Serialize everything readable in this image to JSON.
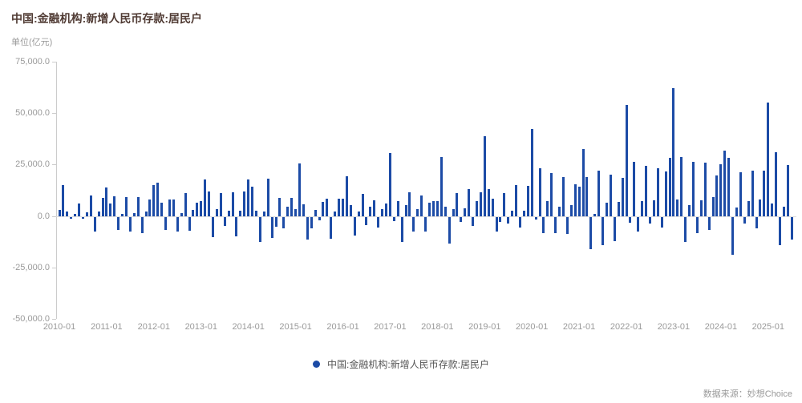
{
  "header": {
    "title": "中国:金融机构:新增人民币存款:居民户",
    "unit_label": "单位(亿元)"
  },
  "legend": {
    "label": "中国:金融机构:新增人民币存款:居民户"
  },
  "footer": {
    "source": "数据来源：妙想Choice"
  },
  "colors": {
    "bar": "#1c4ba6",
    "title": "#513c35",
    "axis_line": "#cccccc",
    "zero_line": "#dddddd",
    "tick_text": "#9a9a9a",
    "legend_text": "#555555"
  },
  "chart_data": {
    "type": "bar",
    "title": "中国:金融机构:新增人民币存款:居民户",
    "unit": "亿元",
    "frequency": "monthly",
    "start_month": "2010-01",
    "end_month": "2025-07",
    "values": [
      2900,
      15000,
      2300,
      -800,
      1100,
      6200,
      -1000,
      1800,
      9800,
      -7200,
      2000,
      8900,
      13700,
      5900,
      9400,
      -6300,
      1000,
      9100,
      -7200,
      1500,
      9100,
      -7800,
      2000,
      8100,
      15000,
      16300,
      6500,
      -6500,
      8100,
      8100,
      -7200,
      1500,
      11100,
      -6800,
      2900,
      6500,
      7200,
      17600,
      11800,
      -9800,
      3300,
      11100,
      -4600,
      2600,
      11500,
      -9400,
      2600,
      12100,
      17700,
      14100,
      2600,
      -12400,
      2000,
      18000,
      -10300,
      -4800,
      8700,
      -5500,
      4700,
      8700,
      3500,
      25400,
      5500,
      -11000,
      -5500,
      3000,
      -1600,
      6900,
      8600,
      -10700,
      2300,
      8600,
      8600,
      19300,
      5300,
      -9300,
      2000,
      10800,
      -3900,
      4600,
      7800,
      -5200,
      3300,
      5900,
      30600,
      -2000,
      7100,
      -12400,
      5200,
      11700,
      -7200,
      3300,
      9800,
      -7200,
      6500,
      7100,
      7100,
      28600,
      4600,
      -13200,
      3300,
      11100,
      -2600,
      3900,
      13000,
      -4600,
      7200,
      11700,
      38600,
      13000,
      8500,
      -7200,
      -2600,
      11100,
      -3300,
      2600,
      15000,
      -5200,
      2600,
      14700,
      42300,
      -1200,
      23300,
      -8000,
      7100,
      20800,
      -7800,
      4500,
      18900,
      -8500,
      5200,
      15600,
      14300,
      32600,
      18900,
      -15700,
      1100,
      21900,
      -13600,
      6500,
      20200,
      -11700,
      6900,
      18400,
      54100,
      -2900,
      26400,
      -7000,
      7200,
      24200,
      -3400,
      7800,
      23400,
      -5100,
      21500,
      28400,
      62000,
      7900,
      28800,
      -12400,
      5300,
      26400,
      -8000,
      7800,
      25800,
      -6400,
      9100,
      19800,
      25000,
      31600,
      28100,
      -18400,
      4200,
      21400,
      -3300,
      7100,
      22000,
      -5700,
      7900,
      21900,
      55200,
      6100,
      30900,
      -13900,
      4700,
      24700,
      -11100
    ],
    "x_tick_labels": [
      "2010-01",
      "2011-01",
      "2012-01",
      "2013-01",
      "2014-01",
      "2015-01",
      "2016-01",
      "2017-01",
      "2018-01",
      "2019-01",
      "2020-01",
      "2021-01",
      "2022-01",
      "2023-01",
      "2024-01",
      "2025-01"
    ],
    "y_tick_labels": [
      "75,000.0",
      "50,000.0",
      "25,000.0",
      "0.0",
      "-25,000.0",
      "-50,000.0"
    ],
    "ylim": [
      -50000,
      75000
    ],
    "grid": false,
    "legend_position": "bottom-center"
  }
}
